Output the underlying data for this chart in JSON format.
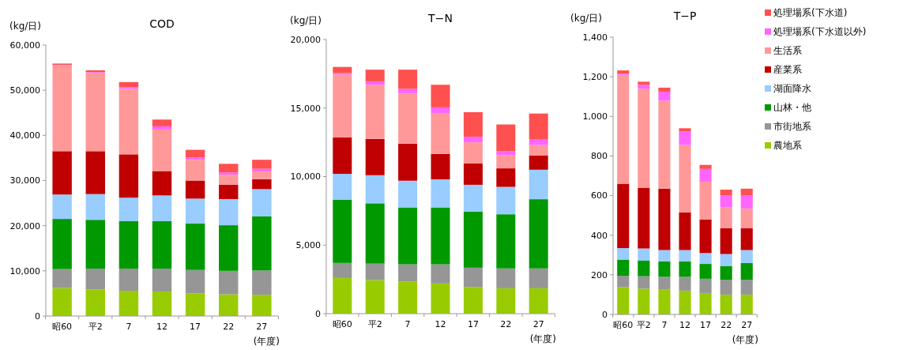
{
  "chart_data": [
    {
      "type": "bar",
      "stacked": true,
      "title": "COD",
      "ylabel": "(kg/日)",
      "xlabel": "(年度)",
      "categories": [
        "昭60",
        "平2",
        "7",
        "12",
        "17",
        "22",
        "27"
      ],
      "ylim": [
        0,
        60000
      ],
      "yticks": [
        {
          "value": 0,
          "label": "0"
        },
        {
          "value": 10000,
          "label": "10,000"
        },
        {
          "value": 20000,
          "label": "20,000"
        },
        {
          "value": 30000,
          "label": "30,000"
        },
        {
          "value": 40000,
          "label": "40,000"
        },
        {
          "value": 50000,
          "label": "50,000"
        },
        {
          "value": 60000,
          "label": "60,000"
        }
      ],
      "grid": false,
      "legend": false,
      "series": [
        {
          "color": "#99cc00",
          "values": [
            6200,
            5900,
            5600,
            5400,
            5000,
            4800,
            4700
          ]
        },
        {
          "color": "#969696",
          "values": [
            4200,
            4600,
            4900,
            5100,
            5200,
            5200,
            5400
          ]
        },
        {
          "color": "#009900",
          "values": [
            11100,
            10800,
            10500,
            10500,
            10300,
            10100,
            12000
          ]
        },
        {
          "color": "#99ccff",
          "values": [
            5400,
            5700,
            5200,
            5700,
            5500,
            5800,
            6000
          ]
        },
        {
          "color": "#c00000",
          "values": [
            9600,
            9500,
            9600,
            5400,
            4000,
            3200,
            2200
          ]
        },
        {
          "color": "#ff9999",
          "values": [
            19000,
            17300,
            14500,
            9200,
            4600,
            2200,
            1700
          ]
        },
        {
          "color": "#ff66ff",
          "values": [
            100,
            200,
            400,
            700,
            500,
            500,
            600
          ]
        },
        {
          "color": "#ff5050",
          "values": [
            300,
            400,
            1100,
            1500,
            1700,
            1900,
            2000
          ]
        }
      ]
    },
    {
      "type": "bar",
      "stacked": true,
      "title": "T−N",
      "ylabel": "(kg/日)",
      "xlabel": "(年度)",
      "categories": [
        "昭60",
        "平2",
        "7",
        "12",
        "17",
        "22",
        "27"
      ],
      "ylim": [
        0,
        20000
      ],
      "yticks": [
        {
          "value": 0,
          "label": "0"
        },
        {
          "value": 5000,
          "label": "5,000"
        },
        {
          "value": 10000,
          "label": "10,000"
        },
        {
          "value": 15000,
          "label": "15,000"
        },
        {
          "value": 20000,
          "label": "20,000"
        }
      ],
      "grid": false,
      "legend": false,
      "series": [
        {
          "color": "#99cc00",
          "values": [
            2600,
            2450,
            2350,
            2200,
            1950,
            1850,
            1850
          ]
        },
        {
          "color": "#969696",
          "values": [
            1100,
            1200,
            1250,
            1400,
            1400,
            1450,
            1450
          ]
        },
        {
          "color": "#009900",
          "values": [
            4600,
            4400,
            4150,
            4150,
            4100,
            3950,
            5050
          ]
        },
        {
          "color": "#99ccff",
          "values": [
            1900,
            2050,
            1950,
            2050,
            1950,
            2000,
            2150
          ]
        },
        {
          "color": "#c00000",
          "values": [
            2650,
            2650,
            2700,
            1850,
            1550,
            1350,
            1050
          ]
        },
        {
          "color": "#ff9999",
          "values": [
            4600,
            3950,
            3650,
            2950,
            1550,
            950,
            750
          ]
        },
        {
          "color": "#ff66ff",
          "values": [
            100,
            250,
            350,
            450,
            400,
            300,
            400
          ]
        },
        {
          "color": "#ff5050",
          "values": [
            450,
            850,
            1400,
            1650,
            1800,
            1950,
            1900
          ]
        }
      ]
    },
    {
      "type": "bar",
      "stacked": true,
      "title": "T−P",
      "ylabel": "(kg/日)",
      "xlabel": "(年度)",
      "categories": [
        "昭60",
        "平2",
        "7",
        "12",
        "17",
        "22",
        "27"
      ],
      "ylim": [
        0,
        1400
      ],
      "yticks": [
        {
          "value": 0,
          "label": "0"
        },
        {
          "value": 200,
          "label": "200"
        },
        {
          "value": 400,
          "label": "400"
        },
        {
          "value": 600,
          "label": "600"
        },
        {
          "value": 800,
          "label": "800"
        },
        {
          "value": 1000,
          "label": "1,000"
        },
        {
          "value": 1200,
          "label": "1,200"
        },
        {
          "value": 1400,
          "label": "1,400"
        }
      ],
      "grid": false,
      "legend": "right",
      "series": [
        {
          "name": "農地系",
          "color": "#99cc00",
          "values": [
            137,
            130,
            125,
            120,
            108,
            100,
            100
          ]
        },
        {
          "name": "市街地系",
          "color": "#969696",
          "values": [
            58,
            63,
            65,
            70,
            72,
            75,
            75
          ]
        },
        {
          "name": "山林・他",
          "color": "#009900",
          "values": [
            82,
            80,
            78,
            78,
            75,
            70,
            85
          ]
        },
        {
          "name": "湖面降水",
          "color": "#99ccff",
          "values": [
            58,
            60,
            57,
            57,
            55,
            60,
            65
          ]
        },
        {
          "name": "産業系",
          "color": "#c00000",
          "values": [
            325,
            307,
            310,
            190,
            170,
            130,
            110
          ]
        },
        {
          "name": "生活系",
          "color": "#ff9999",
          "values": [
            550,
            500,
            445,
            340,
            190,
            105,
            100
          ]
        },
        {
          "name": "処理場系(下水道以外)",
          "color": "#ff66ff",
          "values": [
            5,
            20,
            45,
            70,
            65,
            60,
            65
          ]
        },
        {
          "name": "処理場系(下水道)",
          "color": "#ff5050",
          "values": [
            17,
            15,
            20,
            15,
            20,
            30,
            35
          ]
        }
      ]
    }
  ]
}
